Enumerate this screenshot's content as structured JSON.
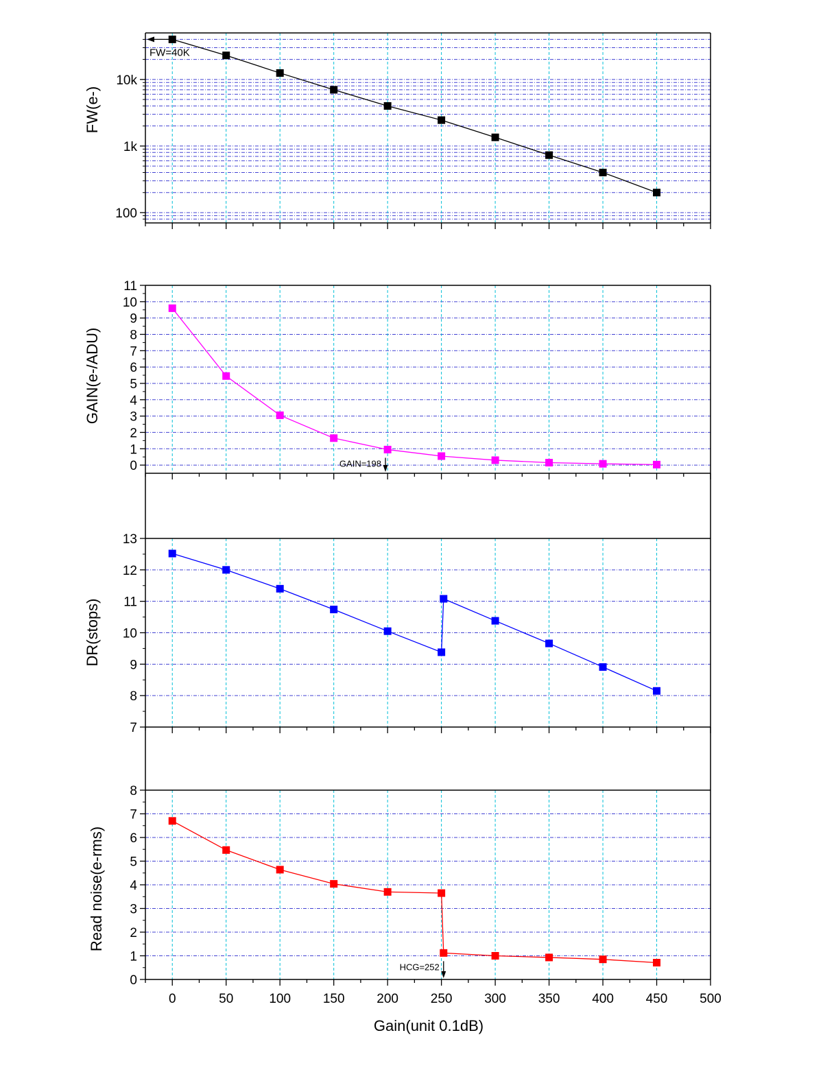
{
  "colors": {
    "background": "#ffffff",
    "axis": "#000000",
    "vgrid": "#00bfd8",
    "hgrid": "#2222cc",
    "fw_series": "#000000",
    "gain_series": "#ff00ff",
    "dr_series": "#0000ff",
    "rn_series": "#ff0000"
  },
  "x_axis": {
    "label": "Gain(unit 0.1dB)",
    "range": [
      -25,
      500
    ],
    "ticks": [
      0,
      50,
      100,
      150,
      200,
      250,
      300,
      350,
      400,
      450,
      500
    ],
    "tick_labels": [
      "0",
      "50",
      "100",
      "150",
      "200",
      "250",
      "300",
      "350",
      "400",
      "450",
      "500"
    ],
    "grid": true
  },
  "chart_data": [
    {
      "id": "fw",
      "type": "line",
      "scale_y": "log",
      "ylabel": "FW(e-)",
      "ylim": [
        70,
        50000
      ],
      "y_ticks": [
        100,
        1000,
        10000
      ],
      "y_tick_labels": [
        "100",
        "1k",
        "10k"
      ],
      "grid": true,
      "series": [
        {
          "x": [
            0,
            50,
            100,
            150,
            200,
            250,
            300,
            350,
            400,
            450
          ],
          "values": [
            40000,
            23000,
            12500,
            7000,
            4000,
            2450,
            1350,
            730,
            400,
            200
          ]
        }
      ],
      "annotations": [
        {
          "text": "FW=40K",
          "x": 0,
          "y": 40000,
          "arrow": "left"
        }
      ]
    },
    {
      "id": "gain",
      "type": "line",
      "scale_y": "linear",
      "ylabel": "GAIN(e-/ADU)",
      "ylim": [
        -0.5,
        11
      ],
      "y_ticks": [
        0,
        1,
        2,
        3,
        4,
        5,
        6,
        7,
        8,
        9,
        10,
        11
      ],
      "y_tick_labels": [
        "0",
        "1",
        "2",
        "3",
        "4",
        "5",
        "6",
        "7",
        "8",
        "9",
        "10",
        "11"
      ],
      "grid": true,
      "series": [
        {
          "x": [
            0,
            50,
            100,
            150,
            200,
            250,
            300,
            350,
            400,
            450
          ],
          "values": [
            9.6,
            5.45,
            3.05,
            1.65,
            0.95,
            0.55,
            0.3,
            0.15,
            0.08,
            0.03
          ]
        }
      ],
      "annotations": [
        {
          "text": "GAIN=198",
          "x": 198,
          "y": 0.95,
          "arrow": "down"
        }
      ]
    },
    {
      "id": "dr",
      "type": "line",
      "scale_y": "linear",
      "ylabel": "DR(stops)",
      "ylim": [
        7,
        13
      ],
      "y_ticks": [
        7,
        8,
        9,
        10,
        11,
        12,
        13
      ],
      "y_tick_labels": [
        "7",
        "8",
        "9",
        "10",
        "11",
        "12",
        "13"
      ],
      "grid": true,
      "series": [
        {
          "x": [
            0,
            50,
            100,
            150,
            200,
            250,
            252,
            300,
            350,
            400,
            450
          ],
          "values": [
            12.52,
            12.0,
            11.4,
            10.74,
            10.05,
            9.38,
            11.08,
            10.38,
            9.66,
            8.91,
            8.15
          ]
        }
      ]
    },
    {
      "id": "rn",
      "type": "line",
      "scale_y": "linear",
      "ylabel": "Read noise(e-rms)",
      "ylim": [
        0,
        8
      ],
      "y_ticks": [
        0,
        1,
        2,
        3,
        4,
        5,
        6,
        7,
        8
      ],
      "y_tick_labels": [
        "0",
        "1",
        "2",
        "3",
        "4",
        "5",
        "6",
        "7",
        "8"
      ],
      "grid": true,
      "series": [
        {
          "x": [
            0,
            50,
            100,
            150,
            200,
            250,
            252,
            300,
            350,
            400,
            450
          ],
          "values": [
            6.7,
            5.47,
            4.64,
            4.04,
            3.7,
            3.65,
            1.12,
            1.0,
            0.93,
            0.85,
            0.71
          ]
        }
      ],
      "annotations": [
        {
          "text": "HCG=252",
          "x": 252,
          "y": 1.12,
          "arrow": "down"
        }
      ]
    }
  ]
}
